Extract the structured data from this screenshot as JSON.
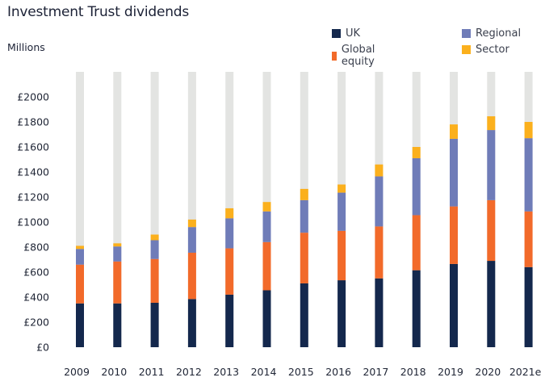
{
  "chart_data": {
    "type": "bar",
    "stacked": true,
    "title": "Investment Trust dividends",
    "ylabel": "Millions",
    "xlabel": "",
    "ylim": [
      0,
      2000
    ],
    "background_track_max": 2200,
    "yticks": [
      0,
      200,
      400,
      600,
      800,
      1000,
      1200,
      1400,
      1600,
      1800,
      2000
    ],
    "ytick_labels": [
      "£0",
      "£200",
      "£400",
      "£600",
      "£800",
      "£1000",
      "£1200",
      "£1400",
      "£1600",
      "£1800",
      "£2000"
    ],
    "grid": false,
    "legend_position": "top-right",
    "categories": [
      "2009",
      "2010",
      "2011",
      "2012",
      "2013",
      "2014",
      "2015",
      "2016",
      "2017",
      "2018",
      "2019",
      "2020",
      "2021e"
    ],
    "series": [
      {
        "name": "UK",
        "color": "#14284d",
        "values": [
          350,
          350,
          355,
          385,
          420,
          455,
          510,
          535,
          550,
          615,
          665,
          690,
          640
        ]
      },
      {
        "name": "Global equity",
        "color": "#f26a2a",
        "values": [
          310,
          335,
          350,
          370,
          370,
          385,
          405,
          395,
          415,
          440,
          460,
          485,
          445
        ]
      },
      {
        "name": "Regional",
        "color": "#6f7cb8",
        "values": [
          125,
          120,
          150,
          205,
          240,
          245,
          260,
          305,
          400,
          455,
          540,
          560,
          585
        ]
      },
      {
        "name": "Sector",
        "color": "#fbb01d",
        "values": [
          25,
          25,
          45,
          60,
          80,
          75,
          90,
          65,
          95,
          90,
          115,
          110,
          130
        ]
      }
    ],
    "track_color": "#e3e4e2"
  },
  "legend": {
    "items": [
      {
        "label": "UK",
        "color": "#14284d"
      },
      {
        "label": "Regional",
        "color": "#6f7cb8"
      },
      {
        "label": "Global equity",
        "color": "#f26a2a"
      },
      {
        "label": "Sector",
        "color": "#fbb01d"
      }
    ]
  }
}
